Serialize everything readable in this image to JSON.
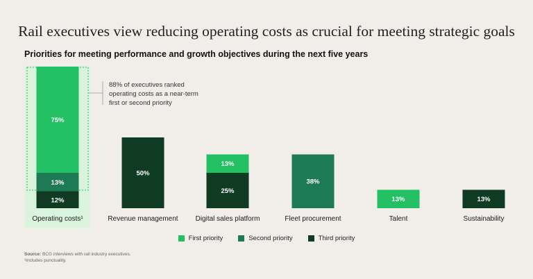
{
  "title": "Rail executives view reducing operating costs as crucial for meeting strategic goals",
  "subtitle": "Priorities for meeting performance and growth objectives during the next five years",
  "colors": {
    "first": "#22c063",
    "second": "#1e7a55",
    "third": "#0e3b22",
    "highlight_bg": "#d9f3dd",
    "highlight_border": "#2ebd5f"
  },
  "annotation": {
    "lines": [
      "88% of executives ranked",
      "operating costs as a near-term",
      "first or second priority"
    ]
  },
  "legend": [
    {
      "name": "First priority",
      "color_key": "first"
    },
    {
      "name": "Second priority",
      "color_key": "second"
    },
    {
      "name": "Third priority",
      "color_key": "third"
    }
  ],
  "source": {
    "label": "Source:",
    "text": "BCG interviews with rail industry executives.",
    "footnote": "¹Includes punctuality."
  },
  "chart_data": {
    "type": "bar",
    "stacked": true,
    "title": "Priorities for meeting performance and growth objectives during the next five years",
    "categories": [
      "Operating costs¹",
      "Revenue management",
      "Digital sales platform",
      "Fleet procurement",
      "Talent",
      "Sustainability"
    ],
    "series": [
      {
        "name": "Third priority",
        "key": "third",
        "values": [
          12,
          50,
          25,
          0,
          0,
          13
        ]
      },
      {
        "name": "Second priority",
        "key": "second",
        "values": [
          13,
          0,
          0,
          38,
          0,
          0
        ]
      },
      {
        "name": "First priority",
        "key": "first",
        "values": [
          75,
          0,
          13,
          0,
          13,
          0
        ]
      }
    ],
    "highlighted_category": "Operating costs¹",
    "value_suffix": "%",
    "ylim": [
      0,
      100
    ]
  }
}
